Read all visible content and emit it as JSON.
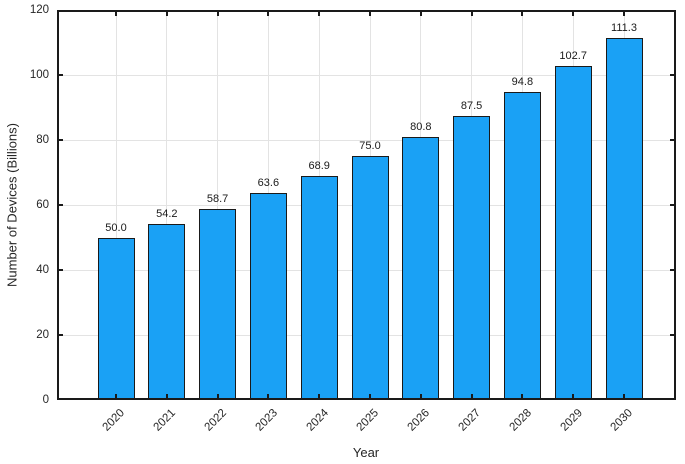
{
  "chart_data": {
    "type": "bar",
    "title": "",
    "xlabel": "Year",
    "ylabel": "Number of Devices (Billions)",
    "categories": [
      "2020",
      "2021",
      "2022",
      "2023",
      "2024",
      "2025",
      "2026",
      "2027",
      "2028",
      "2029",
      "2030"
    ],
    "values": [
      50.0,
      54.2,
      58.7,
      63.6,
      68.9,
      75.0,
      80.8,
      87.5,
      94.8,
      102.7,
      111.3
    ],
    "data_labels": [
      "50.0",
      "54.2",
      "58.7",
      "63.6",
      "68.9",
      "75.0",
      "80.8",
      "87.5",
      "94.8",
      "102.7",
      "111.3"
    ],
    "yticks": [
      0,
      20,
      40,
      60,
      80,
      100,
      120
    ],
    "ylim": [
      0,
      120
    ],
    "grid": "on",
    "legend_position": "none",
    "bar_color": "#1aa1f5",
    "bar_border_color": "#1a1a1a",
    "grid_color": "#e3e3e3",
    "frame_color": "#1a1a1a"
  }
}
